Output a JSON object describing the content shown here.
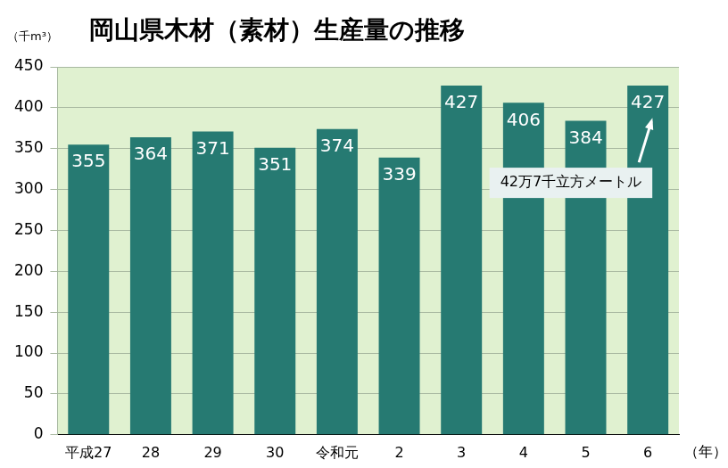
{
  "chart_data": {
    "type": "bar",
    "title": "岡山県木材（素材）生産量の推移",
    "ylabel": "（千m³）",
    "xlabel": "（年）",
    "annotation": "42万7千立方メートル",
    "categories": [
      "平成27",
      "28",
      "29",
      "30",
      "令和元",
      "2",
      "3",
      "4",
      "5",
      "6"
    ],
    "values": [
      355,
      364,
      371,
      351,
      374,
      339,
      427,
      406,
      384,
      427
    ],
    "color": "#267a72",
    "ylim": [
      0,
      450
    ],
    "yticks": [
      0,
      50,
      100,
      150,
      200,
      250,
      300,
      350,
      400,
      450
    ],
    "grid": true,
    "data_labels": true
  }
}
